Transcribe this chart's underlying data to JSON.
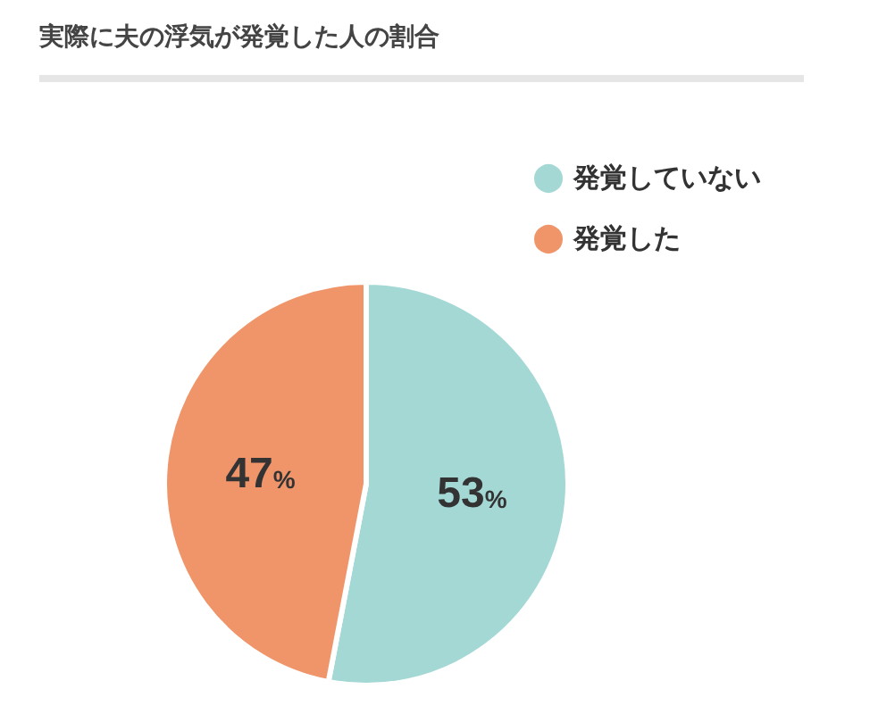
{
  "chart_data": {
    "type": "pie",
    "title": "実際に夫の浮気が発覚した人の割合",
    "categories": [
      "発覚していない",
      "発覚した"
    ],
    "values": [
      53,
      47
    ],
    "colors": [
      "#a3d8d5",
      "#f0956a"
    ],
    "value_labels": [
      "53%",
      "47%"
    ],
    "legend": "top right"
  }
}
